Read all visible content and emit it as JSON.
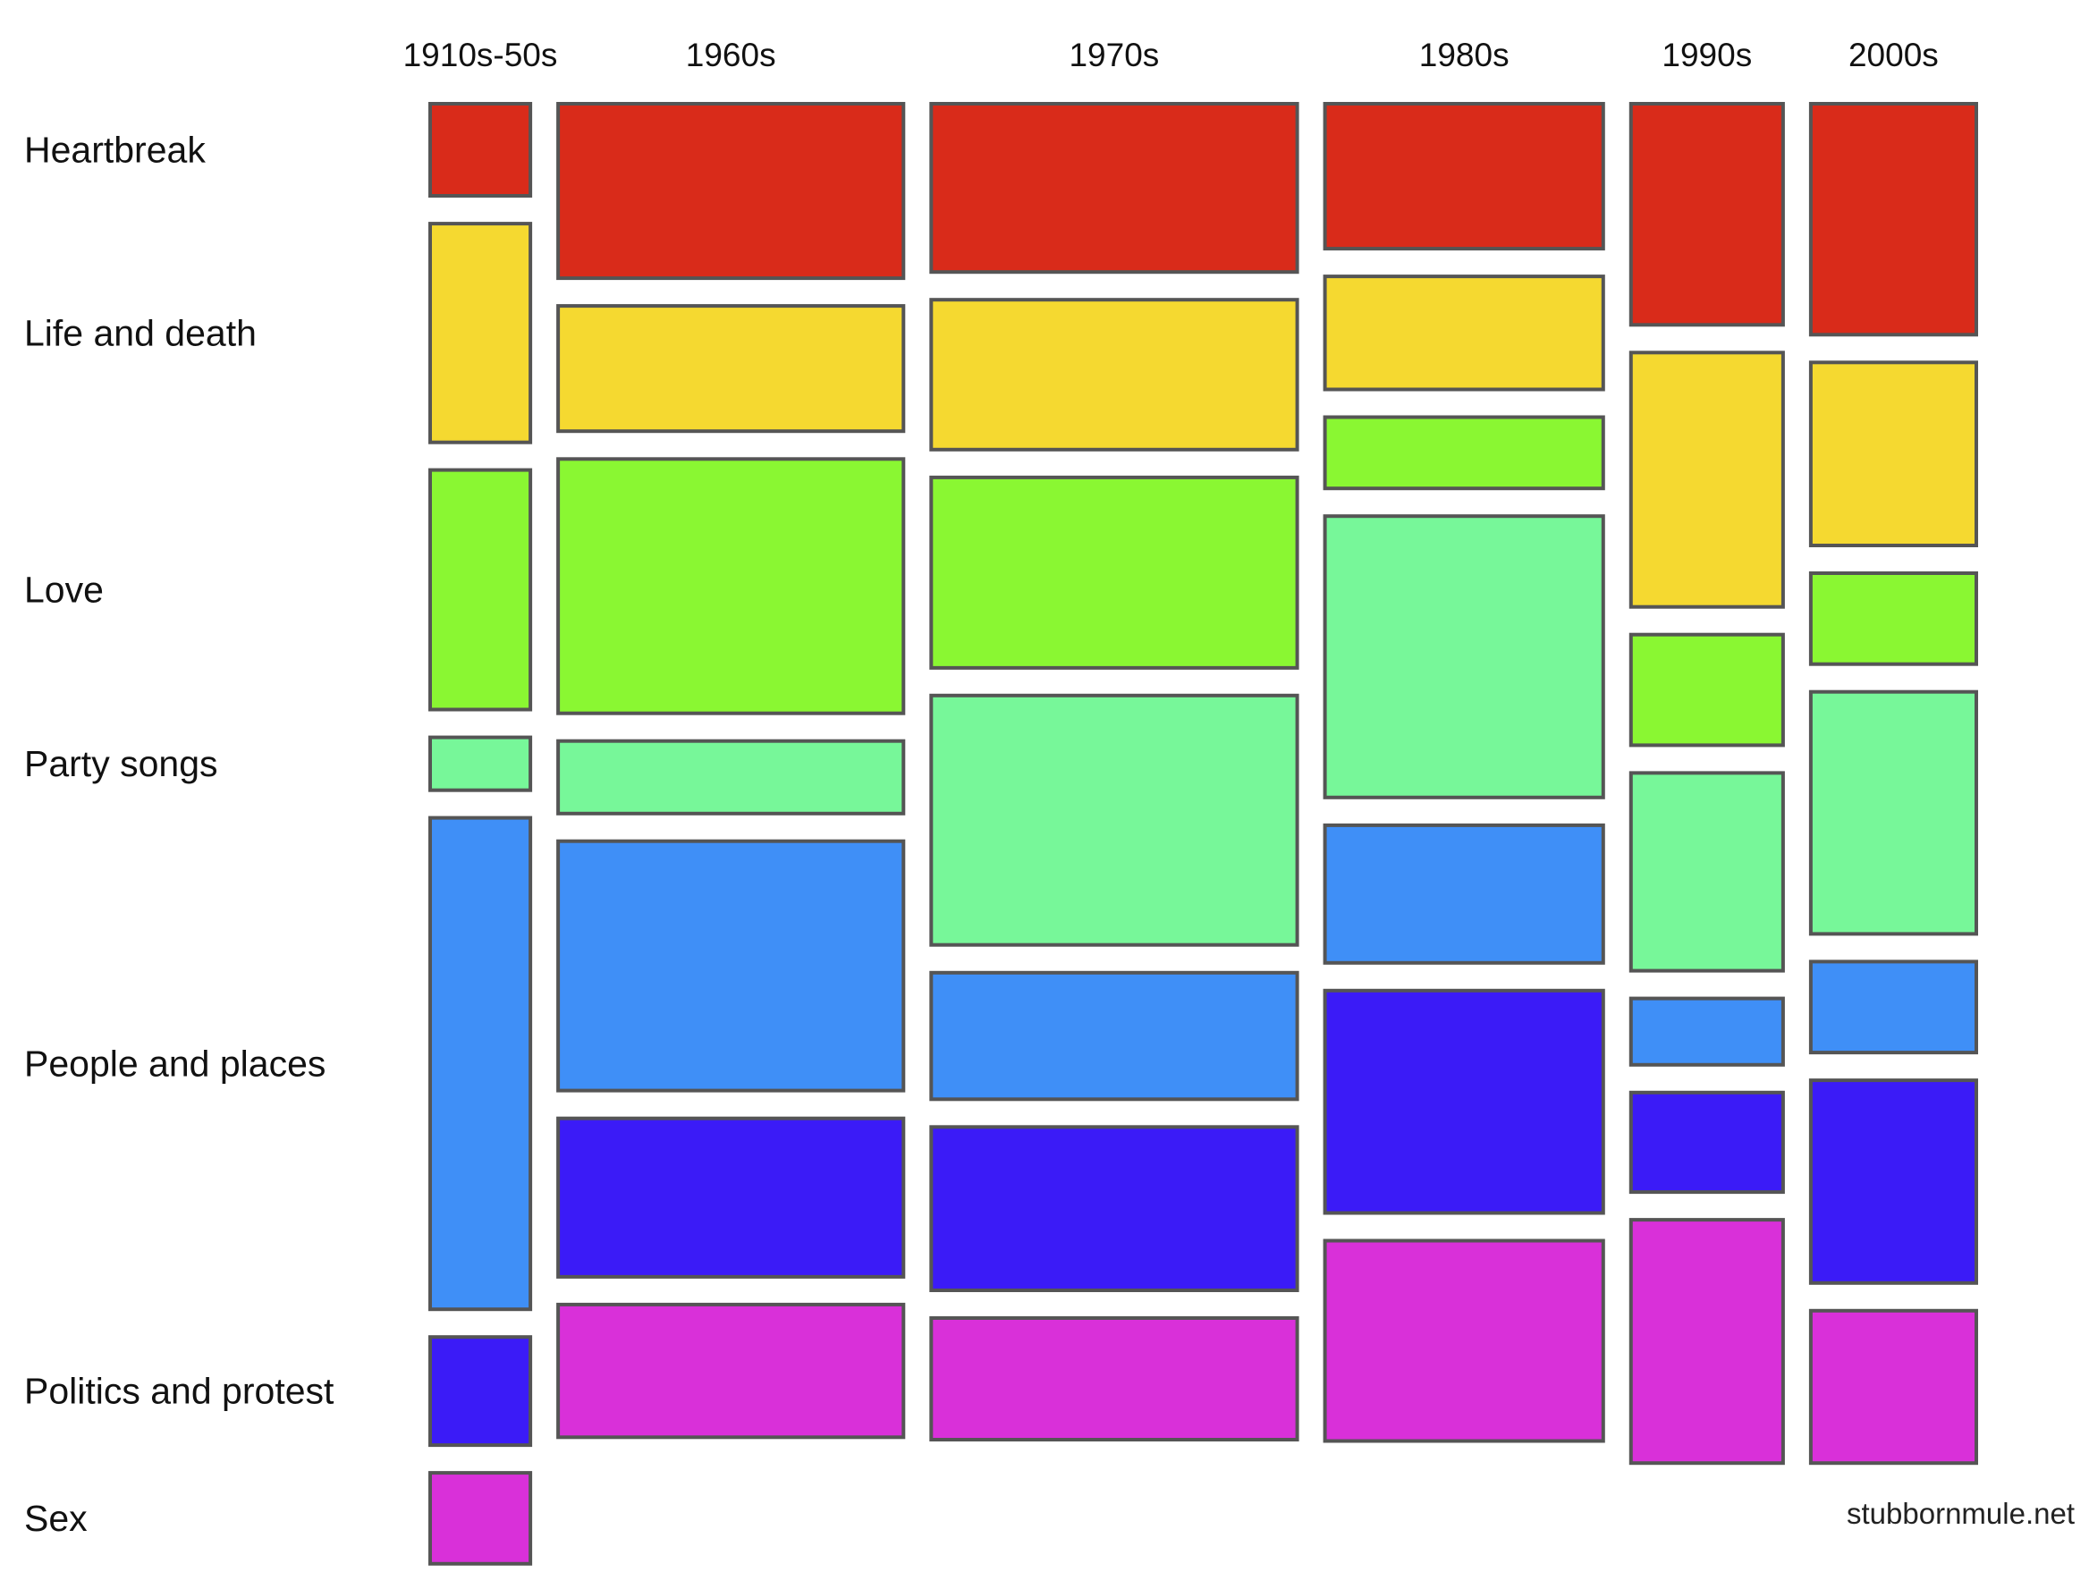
{
  "chart_data": {
    "type": "mosaic",
    "title": "",
    "xlabel": "",
    "ylabel": "",
    "column_header": "",
    "columns": [
      {
        "label": "1910s-50s",
        "weight": 11.2
      },
      {
        "label": "1960s",
        "weight": 38.6
      },
      {
        "label": "1970s",
        "weight": 40.9
      },
      {
        "label": "1980s",
        "weight": 31.1
      },
      {
        "label": "1990s",
        "weight": 17.0
      },
      {
        "label": "2000s",
        "weight": 18.5
      }
    ],
    "categories": [
      "Heartbreak",
      "Life and death",
      "Love",
      "Party songs",
      "People and places",
      "Politics and protest",
      "Sex"
    ],
    "colors": [
      "#d92b1a",
      "#f5d930",
      "#8af732",
      "#77f799",
      "#3f8ff7",
      "#3b1bf7",
      "#d930d9"
    ],
    "proportions": [
      [
        0.075,
        0.178,
        0.195,
        0.043,
        0.4,
        0.088,
        0.074
      ],
      [
        0.142,
        0.102,
        0.207,
        0.059,
        0.203,
        0.129,
        0.108
      ],
      [
        0.137,
        0.122,
        0.155,
        0.203,
        0.103,
        0.133,
        0.099
      ],
      [
        0.118,
        0.092,
        0.058,
        0.229,
        0.112,
        0.181,
        0.163
      ],
      [
        0.18,
        0.207,
        0.09,
        0.161,
        0.054,
        0.081,
        0.198
      ],
      [
        0.188,
        0.149,
        0.074,
        0.197,
        0.074,
        0.165,
        0.124
      ]
    ],
    "row_labels": [
      {
        "label": "Heartbreak",
        "col": 0
      },
      {
        "label": "Life and death",
        "col": 0
      },
      {
        "label": "Love",
        "col": 0
      },
      {
        "label": "Party songs",
        "col": 0
      },
      {
        "label": "People and places",
        "col": 0
      },
      {
        "label": "Politics and protest",
        "col": 0
      },
      {
        "label": "Sex",
        "col": 0
      }
    ],
    "legend": "none",
    "grid": false
  },
  "footer": {
    "credit": "stubbornmule.net"
  }
}
